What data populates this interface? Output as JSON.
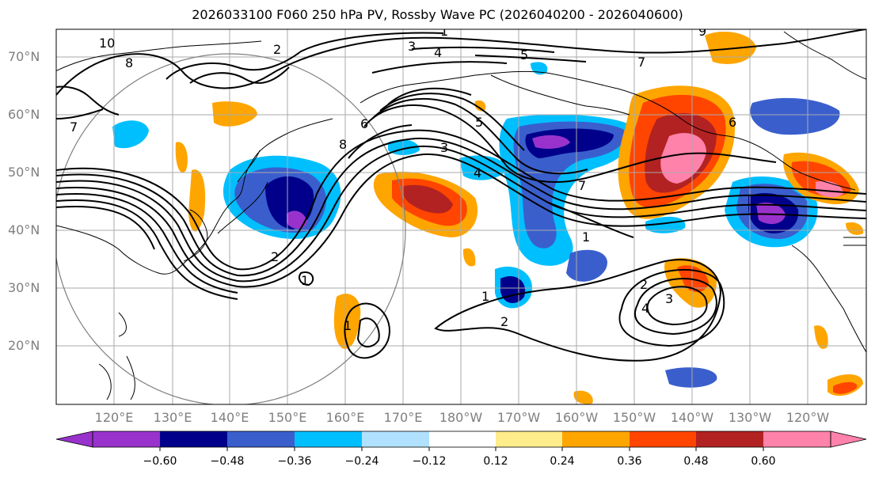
{
  "title": "2026033100 F060 250 hPa PV, Rossby Wave PC (2026040200 - 2026040600)",
  "lat_labels": [
    "70°N",
    "60°N",
    "50°N",
    "40°N",
    "30°N",
    "20°N"
  ],
  "lon_labels": [
    "120°E",
    "130°E",
    "140°E",
    "150°E",
    "160°E",
    "170°E",
    "180°W",
    "170°W",
    "160°W",
    "150°W",
    "140°W",
    "130°W",
    "120°W"
  ],
  "colorbar": {
    "colors": [
      "#9932cc",
      "#00008b",
      "#3a5fcd",
      "#00bfff",
      "#b0e2ff",
      "#ffffff",
      "#ffec8b",
      "#ffa500",
      "#ff4500",
      "#b22222",
      "#ff82ab"
    ],
    "ticks": [
      "−0.60",
      "−0.48",
      "−0.36",
      "−0.24",
      "−0.12",
      "0.12",
      "0.24",
      "0.36",
      "0.48",
      "0.60"
    ]
  },
  "contour_labels": [
    "10",
    "8",
    "1",
    "2",
    "3",
    "4",
    "5",
    "7",
    "6",
    "7",
    "5",
    "4",
    "3",
    "2",
    "1",
    "1",
    "2",
    "3",
    "4",
    "1",
    "2",
    "1",
    "9",
    "7",
    "8",
    "6"
  ]
}
